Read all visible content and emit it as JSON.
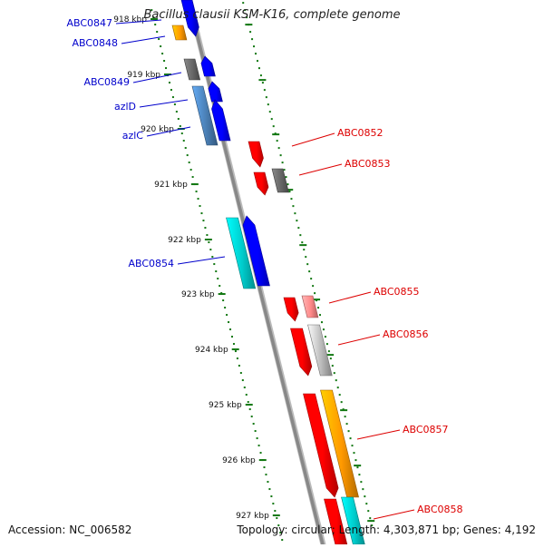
{
  "title": "Bacillus clausii KSM-K16, complete genome",
  "accession": "Accession: NC_006582",
  "topology": "Topology: circular; Length: 4,303,871 bp; Genes: 4,192",
  "colors": {
    "backbone": "#888888",
    "tick": "#117711",
    "left_label": "#0000cc",
    "right_label": "#dd0000",
    "blue": "#0000ff",
    "red": "#ff0000",
    "orange": "#ff9900",
    "grey": "#666666",
    "steel": "#4a7fb5",
    "cyan": "#00cccc",
    "light_red": "#ff8888",
    "light_grey": "#bbbbbb"
  },
  "kbp_labels": [
    "918 kbp",
    "919 kbp",
    "920 kbp",
    "921 kbp",
    "922 kbp",
    "923 kbp",
    "924 kbp",
    "925 kbp",
    "926 kbp",
    "927 kbp"
  ],
  "left_labels": [
    "ABC0847",
    "ABC0848",
    "ABC0849",
    "azlD",
    "azlC",
    "ABC0854"
  ],
  "right_labels": [
    "ABC0852",
    "ABC0853",
    "ABC0855",
    "ABC0856",
    "ABC0857",
    "ABC0858"
  ]
}
